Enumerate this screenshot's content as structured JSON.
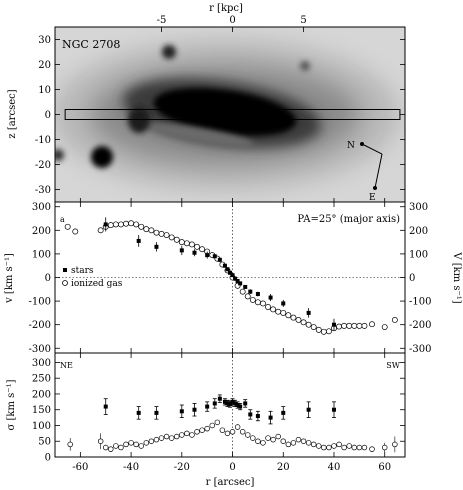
{
  "chart_data": [
    {
      "type": "image",
      "object_label": "NGC 2708",
      "top_axis": {
        "label": "r [kpc]",
        "ticks": [
          -5,
          0,
          5
        ]
      },
      "ylabel": "z [arcsec]",
      "ylim": [
        -35,
        35
      ],
      "yticks": [
        30,
        20,
        10,
        0,
        -10,
        -20,
        -30
      ],
      "xlim": [
        -70,
        68
      ],
      "slit": {
        "z_range": [
          -2,
          2
        ],
        "r_range": [
          -66,
          66
        ]
      },
      "compass": {
        "north": "N",
        "east": "E"
      }
    },
    {
      "type": "scatter",
      "panel_label": "PA=25° (major axis)",
      "corner_label": "a",
      "ylabel": "v [km s⁻¹]",
      "ylabel_right": "V [km s⁻¹]",
      "ylim": [
        -320,
        320
      ],
      "yticks": [
        300,
        200,
        100,
        0,
        -100,
        -200,
        -300
      ],
      "yticks_right": [
        300,
        200,
        100,
        0,
        -100,
        -200,
        -300
      ],
      "legend": [
        "stars",
        "ionized gas"
      ],
      "series": [
        {
          "name": "stars",
          "marker": "filled-square",
          "x": [
            -50,
            -37,
            -30,
            -20,
            -15,
            -10,
            -7,
            -5,
            -3,
            -2,
            -1,
            0,
            1,
            2,
            3,
            5,
            7,
            10,
            15,
            20,
            30,
            40
          ],
          "y": [
            225,
            155,
            130,
            115,
            105,
            95,
            90,
            75,
            50,
            35,
            20,
            10,
            -5,
            -15,
            -25,
            -40,
            -60,
            -70,
            -85,
            -110,
            -150,
            -200
          ],
          "err": [
            30,
            25,
            20,
            20,
            15,
            15,
            10,
            10,
            8,
            8,
            8,
            8,
            8,
            8,
            8,
            8,
            10,
            10,
            15,
            15,
            20,
            25
          ]
        },
        {
          "name": "ionized gas",
          "marker": "open-circle",
          "x": [
            -65,
            -62,
            -52,
            -50,
            -48,
            -46,
            -44,
            -42,
            -40,
            -38,
            -36,
            -34,
            -32,
            -30,
            -28,
            -26,
            -24,
            -22,
            -20,
            -18,
            -16,
            -14,
            -12,
            -10,
            -8,
            -6,
            -4,
            -2,
            0,
            2,
            4,
            6,
            8,
            10,
            12,
            14,
            16,
            18,
            20,
            22,
            24,
            26,
            28,
            30,
            32,
            34,
            36,
            38,
            40,
            42,
            44,
            46,
            48,
            50,
            52,
            55,
            60,
            64
          ],
          "y": [
            215,
            195,
            200,
            215,
            222,
            225,
            225,
            228,
            230,
            225,
            215,
            205,
            200,
            190,
            185,
            180,
            170,
            160,
            150,
            145,
            140,
            130,
            120,
            110,
            95,
            80,
            55,
            30,
            0,
            -35,
            -60,
            -80,
            -95,
            -105,
            -110,
            -125,
            -135,
            -145,
            -150,
            -160,
            -170,
            -180,
            -190,
            -200,
            -210,
            -222,
            -230,
            -228,
            -215,
            -208,
            -205,
            -205,
            -205,
            -205,
            -205,
            -198,
            -210,
            -180
          ]
        }
      ]
    },
    {
      "type": "scatter",
      "left_label": "NE",
      "right_label": "SW",
      "xlabel": "r [arcsec]",
      "ylabel": "σ [km s⁻¹]",
      "xlim": [
        -70,
        68
      ],
      "xticks": [
        -60,
        -40,
        -20,
        0,
        20,
        40,
        60
      ],
      "ylim": [
        0,
        330
      ],
      "yticks": [
        300,
        250,
        200,
        150,
        100,
        50,
        0
      ],
      "series": [
        {
          "name": "stars",
          "marker": "filled-square",
          "x": [
            -50,
            -37,
            -30,
            -20,
            -15,
            -10,
            -7,
            -5,
            -3,
            -2,
            -1,
            0,
            1,
            2,
            3,
            5,
            7,
            10,
            15,
            20,
            30,
            40
          ],
          "y": [
            160,
            140,
            140,
            145,
            150,
            160,
            170,
            185,
            175,
            170,
            168,
            175,
            170,
            165,
            160,
            170,
            135,
            130,
            125,
            140,
            150,
            150
          ],
          "err": [
            25,
            20,
            20,
            20,
            20,
            15,
            15,
            12,
            10,
            10,
            10,
            10,
            10,
            10,
            10,
            12,
            15,
            15,
            20,
            20,
            25,
            25
          ]
        },
        {
          "name": "ionized gas",
          "marker": "open-circle",
          "x": [
            -64,
            -52,
            -50,
            -48,
            -46,
            -44,
            -42,
            -40,
            -38,
            -36,
            -34,
            -32,
            -30,
            -28,
            -26,
            -24,
            -22,
            -20,
            -18,
            -16,
            -14,
            -12,
            -10,
            -8,
            -6,
            -4,
            -2,
            0,
            2,
            4,
            6,
            8,
            10,
            12,
            14,
            16,
            18,
            20,
            22,
            24,
            26,
            28,
            30,
            32,
            34,
            36,
            38,
            40,
            42,
            44,
            46,
            48,
            50,
            52,
            55,
            60,
            64
          ],
          "y": [
            40,
            50,
            30,
            25,
            35,
            30,
            40,
            45,
            40,
            35,
            45,
            50,
            55,
            60,
            65,
            60,
            65,
            70,
            75,
            70,
            80,
            85,
            90,
            100,
            110,
            85,
            75,
            80,
            95,
            80,
            70,
            60,
            50,
            45,
            60,
            55,
            65,
            50,
            40,
            45,
            55,
            50,
            45,
            40,
            35,
            30,
            30,
            35,
            40,
            30,
            35,
            30,
            30,
            30,
            25,
            30,
            40
          ],
          "err": [
            20,
            25,
            10,
            8,
            8,
            8,
            8,
            8,
            8,
            8,
            8,
            8,
            8,
            8,
            8,
            8,
            8,
            8,
            8,
            8,
            8,
            8,
            8,
            8,
            8,
            8,
            8,
            8,
            8,
            8,
            8,
            8,
            8,
            8,
            8,
            8,
            8,
            8,
            8,
            8,
            8,
            8,
            8,
            8,
            8,
            8,
            8,
            8,
            8,
            8,
            8,
            8,
            8,
            8,
            8,
            15,
            25
          ]
        }
      ]
    }
  ]
}
